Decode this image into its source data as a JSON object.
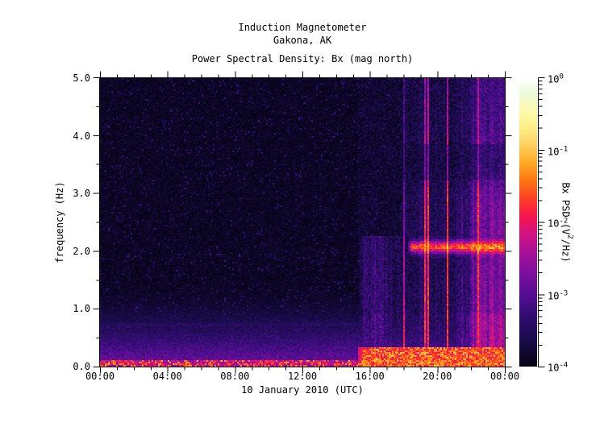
{
  "header": {
    "title_line1": "Induction Magnetometer",
    "title_line2": "Gakona, AK",
    "subtitle": "Power Spectral Density: Bx (mag north)"
  },
  "axes": {
    "x": {
      "label": "10 January 2010 (UTC)",
      "tick_labels": [
        "00:00",
        "04:00",
        "08:00",
        "12:00",
        "16:00",
        "20:00",
        "00:00"
      ],
      "range_hours": [
        0,
        24
      ],
      "major_tick_every_hours": 4,
      "minor_tick_every_hours": 1
    },
    "y": {
      "label": "frequency (Hz)",
      "tick_labels": [
        "0.0",
        "1.0",
        "2.0",
        "3.0",
        "4.0",
        "5.0"
      ],
      "range_hz": [
        0,
        5
      ],
      "major_tick_every_hz": 1.0,
      "minor_tick_every_hz": 0.5
    }
  },
  "colorbar": {
    "label_parts": {
      "pre": "Bx PSD (V",
      "sup": "2",
      "post": "/Hz)"
    },
    "ticks": [
      {
        "base": "10",
        "exp": "0"
      },
      {
        "base": "10",
        "exp": "-1"
      },
      {
        "base": "10",
        "exp": "-2"
      },
      {
        "base": "10",
        "exp": "-3"
      },
      {
        "base": "10",
        "exp": "-4"
      }
    ],
    "scale": "log",
    "range_v2_per_hz": [
      0.0001,
      1
    ],
    "colormap_stops": [
      [
        0.0,
        "#070314"
      ],
      [
        0.08,
        "#160b44"
      ],
      [
        0.17,
        "#300d6e"
      ],
      [
        0.25,
        "#550e93"
      ],
      [
        0.33,
        "#80109d"
      ],
      [
        0.4,
        "#aa1198"
      ],
      [
        0.46,
        "#d41383"
      ],
      [
        0.52,
        "#f6154e"
      ],
      [
        0.58,
        "#ff3d26"
      ],
      [
        0.645,
        "#ff7611"
      ],
      [
        0.71,
        "#ffab27"
      ],
      [
        0.775,
        "#ffd464"
      ],
      [
        0.84,
        "#fff18f"
      ],
      [
        0.9,
        "#fbfab6"
      ],
      [
        0.95,
        "#ecf9da"
      ],
      [
        1.0,
        "#fefffc"
      ]
    ]
  },
  "chart_data": {
    "type": "heatmap",
    "subtype": "spectrogram",
    "instrument": "Induction Magnetometer",
    "site": "Gakona, AK",
    "title": "Power Spectral Density: Bx (mag north)",
    "x": {
      "label": "10 January 2010 (UTC)",
      "units": "hours UTC",
      "range": [
        0,
        24
      ]
    },
    "y": {
      "label": "frequency (Hz)",
      "units": "Hz",
      "range": [
        0,
        5
      ]
    },
    "z": {
      "label": "Bx PSD (V2/Hz)",
      "scale": "log10",
      "range": [
        0.0001,
        1
      ]
    },
    "grid": false,
    "legend_position": "right-colorbar",
    "features": [
      {
        "name": "quiet_background",
        "time_utc": [
          "00:00",
          "15:20"
        ],
        "freq_hz": [
          0.6,
          5.0
        ],
        "psd_v2hz": 0.0001,
        "note": "near-black noise floor with sparse dark-blue specks"
      },
      {
        "name": "low_frequency_wedge",
        "time_utc": [
          "00:00",
          "24:00"
        ],
        "freq_hz": [
          0.0,
          1.5
        ],
        "psd_v2hz": 0.0005,
        "note": "purple enhancement increasing toward 0 Hz"
      },
      {
        "name": "bottom_edge_line",
        "time_utc": [
          "00:00",
          "24:00"
        ],
        "freq_hz": [
          0.0,
          0.1
        ],
        "psd_v2hz": 0.01,
        "note": "thin speckled orange/yellow line at lowest frequencies all day"
      },
      {
        "name": "broadband_onset",
        "time_utc": [
          "15:20",
          "24:00"
        ],
        "freq_hz": [
          0.0,
          2.2
        ],
        "psd_v2hz": 0.002,
        "note": "abrupt onset of striped magenta/pink broadband noise, vertical column modulation"
      },
      {
        "name": "broadband_high_freq",
        "time_utc": [
          "17:45",
          "24:00"
        ],
        "freq_hz": [
          2.2,
          5.0
        ],
        "psd_v2hz": 0.0006,
        "note": "purple striped noise extends to 5 Hz after ~17:45"
      },
      {
        "name": "narrowband_emission",
        "time_utc": [
          "18:15",
          "24:00"
        ],
        "freq_hz": [
          1.95,
          2.25
        ],
        "psd_v2hz": 0.08,
        "note": "brightest feature, yellow-white band near 2.1 Hz"
      },
      {
        "name": "suppressed_band",
        "time_utc": [
          "18:00",
          "24:00"
        ],
        "freq_hz": [
          3.25,
          3.85
        ],
        "psd_v2hz": 0.0004,
        "note": "darker horizontal band within storm noise"
      },
      {
        "name": "enhanced_bottom_band",
        "time_utc": [
          "15:20",
          "24:00"
        ],
        "freq_hz": [
          0.0,
          0.32
        ],
        "psd_v2hz": 0.012,
        "note": "bright orange/red band at lowest frequencies during disturbance"
      }
    ],
    "gen": {
      "seed": 20100110,
      "cols": 251,
      "rows": 179,
      "cell": 2,
      "speck_prob": 0.05,
      "wedge_fmax_hz": 1.6,
      "bottom_line_fmax_hz": 0.1,
      "storm_start_h": 15.35,
      "storm_ramp_h": 0.3,
      "storm_gain": 1.75,
      "hf_gate_start_h": 17.75,
      "hf_gate_ramp_h": 0.4,
      "hf_gate_fmin_hz": 2.25,
      "dark_band_hz": [
        3.25,
        3.85
      ],
      "dark_band_factor": 0.68,
      "boost_band_hz": [
        2.3,
        3.1
      ],
      "boost_factor": 1.12,
      "storm_bottom_fmax_hz": 0.32,
      "narrowband": {
        "center_hz": 2.07,
        "sigma_hz": 0.075,
        "start_h": 18.25,
        "ramp_h": 0.25,
        "peak_log": [
          -1.6,
          -0.75
        ]
      },
      "spike_prob": 0.06
    }
  }
}
